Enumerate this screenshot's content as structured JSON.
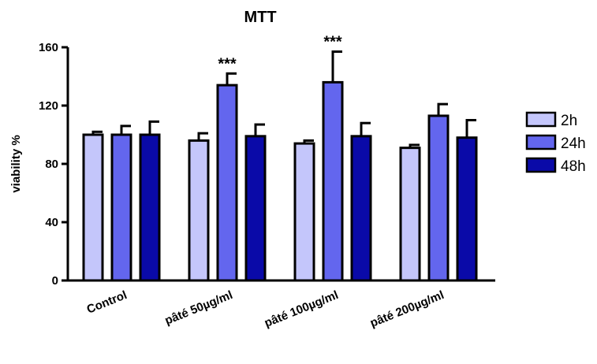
{
  "chart_data": {
    "type": "bar",
    "title": "MTT",
    "xlabel": "",
    "ylabel": "viability %",
    "ylim": [
      0,
      160
    ],
    "yticks": [
      0,
      40,
      80,
      120,
      160
    ],
    "categories": [
      "Control",
      "pâté 50µg/ml",
      "pâté 100µg/ml",
      "pâté 200µg/ml"
    ],
    "series": [
      {
        "name": "2h",
        "color": "#c4c6fb",
        "values": [
          100,
          96,
          94,
          91
        ],
        "errors": [
          2,
          5,
          2,
          2
        ]
      },
      {
        "name": "24h",
        "color": "#6366ee",
        "values": [
          100,
          134,
          136,
          113
        ],
        "errors": [
          6,
          8,
          21,
          8
        ]
      },
      {
        "name": "48h",
        "color": "#0a0aa8",
        "values": [
          100,
          99,
          99,
          98
        ],
        "errors": [
          9,
          8,
          9,
          12
        ]
      }
    ],
    "annotations": [
      {
        "text": "***",
        "category_index": 1,
        "series_index": 1
      },
      {
        "text": "***",
        "category_index": 2,
        "series_index": 1
      }
    ],
    "legend_position": "right",
    "grid": false
  }
}
